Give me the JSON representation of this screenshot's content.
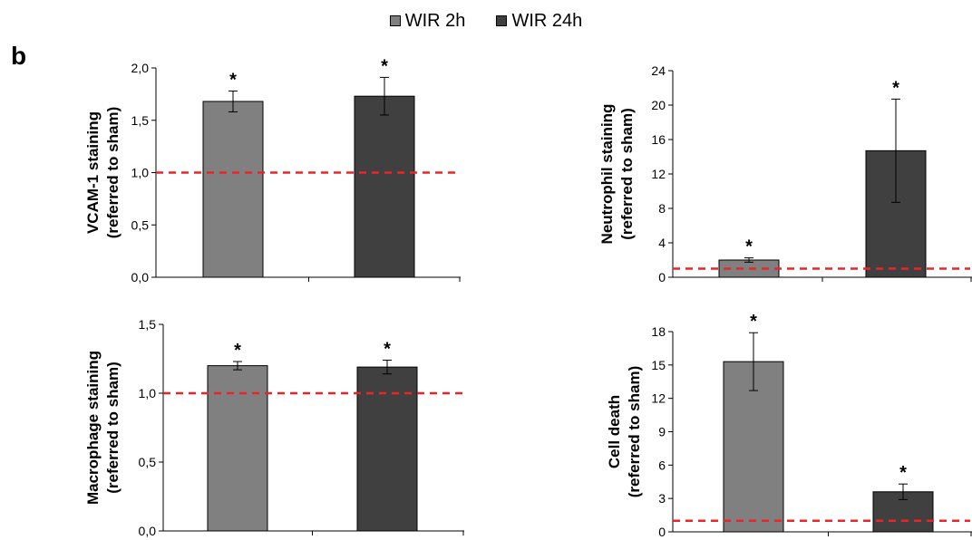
{
  "panel_letter": "b",
  "legend": [
    {
      "label": "WIR 2h",
      "color": "#808080"
    },
    {
      "label": "WIR 24h",
      "color": "#404040"
    }
  ],
  "colors": {
    "bar_2h": "#808080",
    "bar_24h": "#404040",
    "reference_line": "#e8262a"
  },
  "chart_data": [
    {
      "type": "bar",
      "ylabel": [
        "VCAM-1 staining",
        "(referred to sham)"
      ],
      "ylim": [
        0,
        2
      ],
      "yticks": [
        "0,0",
        "0,5",
        "1,0",
        "1,5",
        "2,0"
      ],
      "ytick_values": [
        0,
        0.5,
        1.0,
        1.5,
        2.0
      ],
      "series": [
        {
          "name": "WIR 2h",
          "value": 1.68,
          "error": 0.1,
          "annotation": "*"
        },
        {
          "name": "WIR 24h",
          "value": 1.73,
          "error": 0.18,
          "annotation": "*"
        }
      ],
      "reference_line": 1.0
    },
    {
      "type": "bar",
      "ylabel": [
        "Neutrophil staining",
        "(referred to sham)"
      ],
      "ylim": [
        0,
        24
      ],
      "yticks": [
        "0",
        "4",
        "8",
        "12",
        "16",
        "20",
        "24"
      ],
      "ytick_values": [
        0,
        4,
        8,
        12,
        16,
        20,
        24
      ],
      "series": [
        {
          "name": "WIR 2h",
          "value": 2.0,
          "error": 0.25,
          "annotation": "*"
        },
        {
          "name": "WIR 24h",
          "value": 14.7,
          "error": 6.0,
          "annotation": "*"
        }
      ],
      "reference_line": 1.0
    },
    {
      "type": "bar",
      "ylabel": [
        "Macrophage staining",
        "(referred to sham)"
      ],
      "ylim": [
        0,
        1.5
      ],
      "yticks": [
        "0,0",
        "0,5",
        "1,0",
        "1,5"
      ],
      "ytick_values": [
        0,
        0.5,
        1.0,
        1.5
      ],
      "series": [
        {
          "name": "WIR 2h",
          "value": 1.2,
          "error": 0.03,
          "annotation": "*"
        },
        {
          "name": "WIR 24h",
          "value": 1.19,
          "error": 0.05,
          "annotation": "*"
        }
      ],
      "reference_line": 1.0
    },
    {
      "type": "bar",
      "ylabel": [
        "Cell death",
        "(referred to sham)"
      ],
      "ylim": [
        0,
        18
      ],
      "yticks": [
        "0",
        "3",
        "6",
        "9",
        "12",
        "15",
        "18"
      ],
      "ytick_values": [
        0,
        3,
        6,
        9,
        12,
        15,
        18
      ],
      "series": [
        {
          "name": "WIR 2h",
          "value": 15.3,
          "error": 2.6,
          "annotation": "*"
        },
        {
          "name": "WIR 24h",
          "value": 3.6,
          "error": 0.7,
          "annotation": "*"
        }
      ],
      "reference_line": 1.0
    }
  ]
}
